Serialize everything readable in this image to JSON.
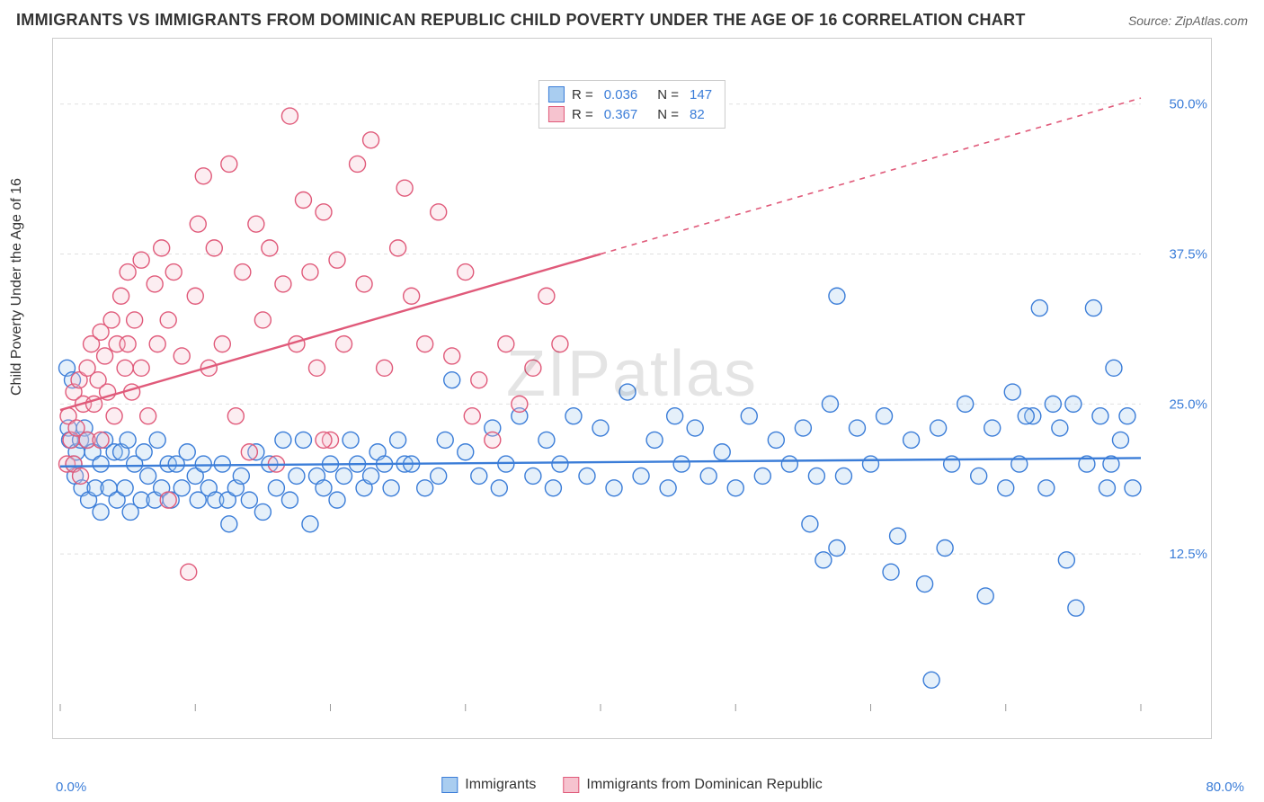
{
  "title": "IMMIGRANTS VS IMMIGRANTS FROM DOMINICAN REPUBLIC CHILD POVERTY UNDER THE AGE OF 16 CORRELATION CHART",
  "source": "Source: ZipAtlas.com",
  "watermark": "ZIPatlas",
  "y_axis_label": "Child Poverty Under the Age of 16",
  "chart": {
    "type": "scatter",
    "background_color": "#ffffff",
    "grid_color": "#e0e0e0",
    "frame_color": "#cccccc",
    "xlim": [
      0,
      80
    ],
    "ylim": [
      0,
      55
    ],
    "x_ticks": [
      0,
      10,
      20,
      30,
      40,
      50,
      60,
      70,
      80
    ],
    "x_origin_label": "0.0%",
    "x_max_label": "80.0%",
    "y_ticks": [
      {
        "v": 12.5,
        "label": "12.5%"
      },
      {
        "v": 25.0,
        "label": "25.0%"
      },
      {
        "v": 37.5,
        "label": "37.5%"
      },
      {
        "v": 50.0,
        "label": "50.0%"
      }
    ],
    "marker_radius": 9,
    "marker_stroke_width": 1.4,
    "marker_fill_opacity": 0.3,
    "trend_line_width": 2.4,
    "trend_dash": "6,6",
    "axis_label_color": "#3b7dd8",
    "axis_label_fontsize": 15,
    "title_fontsize": 18,
    "title_color": "#333333"
  },
  "legend_top": [
    {
      "swatch_fill": "#a9cdf0",
      "swatch_stroke": "#3b7dd8",
      "r_label": "R =",
      "r_value": "0.036",
      "n_label": "N =",
      "n_value": "147"
    },
    {
      "swatch_fill": "#f6c3cf",
      "swatch_stroke": "#e05a7a",
      "r_label": "R =",
      "r_value": "0.367",
      "n_label": "N =",
      "n_value": "82"
    }
  ],
  "legend_bottom": [
    {
      "swatch_fill": "#a9cdf0",
      "swatch_stroke": "#3b7dd8",
      "label": "Immigrants"
    },
    {
      "swatch_fill": "#f6c3cf",
      "swatch_stroke": "#e05a7a",
      "label": "Immigrants from Dominican Republic"
    }
  ],
  "series": [
    {
      "name": "Immigrants",
      "color_stroke": "#3b7dd8",
      "color_fill": "#a9cdf0",
      "trend": {
        "x1": 0,
        "y1": 19.8,
        "x2": 80,
        "y2": 20.5,
        "solid_until_x": 80
      },
      "points": [
        [
          0.5,
          28
        ],
        [
          0.6,
          23
        ],
        [
          0.7,
          22
        ],
        [
          0.9,
          27
        ],
        [
          1.0,
          20
        ],
        [
          1.1,
          19
        ],
        [
          1.2,
          21
        ],
        [
          1.5,
          22
        ],
        [
          1.6,
          18
        ],
        [
          1.8,
          23
        ],
        [
          2.0,
          22
        ],
        [
          2.1,
          17
        ],
        [
          2.4,
          21
        ],
        [
          2.6,
          18
        ],
        [
          3.0,
          20
        ],
        [
          3.0,
          16
        ],
        [
          3.3,
          22
        ],
        [
          3.6,
          18
        ],
        [
          4.0,
          21
        ],
        [
          4.2,
          17
        ],
        [
          4.5,
          21
        ],
        [
          4.8,
          18
        ],
        [
          5.0,
          22
        ],
        [
          5.2,
          16
        ],
        [
          5.5,
          20
        ],
        [
          6.0,
          17
        ],
        [
          6.2,
          21
        ],
        [
          6.5,
          19
        ],
        [
          7.0,
          17
        ],
        [
          7.2,
          22
        ],
        [
          7.5,
          18
        ],
        [
          8.0,
          20
        ],
        [
          8.2,
          17
        ],
        [
          8.6,
          20
        ],
        [
          9.0,
          18
        ],
        [
          9.4,
          21
        ],
        [
          10.0,
          19
        ],
        [
          10.2,
          17
        ],
        [
          10.6,
          20
        ],
        [
          11.0,
          18
        ],
        [
          11.5,
          17
        ],
        [
          12.0,
          20
        ],
        [
          12.4,
          17
        ],
        [
          13.0,
          18
        ],
        [
          13.4,
          19
        ],
        [
          14.0,
          17
        ],
        [
          14.5,
          21
        ],
        [
          15.0,
          16
        ],
        [
          15.5,
          20
        ],
        [
          16.0,
          18
        ],
        [
          16.5,
          22
        ],
        [
          17.0,
          17
        ],
        [
          17.5,
          19
        ],
        [
          18.0,
          22
        ],
        [
          18.5,
          15
        ],
        [
          19.0,
          19
        ],
        [
          19.5,
          18
        ],
        [
          20.0,
          20
        ],
        [
          20.5,
          17
        ],
        [
          21.0,
          19
        ],
        [
          21.5,
          22
        ],
        [
          22.0,
          20
        ],
        [
          22.5,
          18
        ],
        [
          23.0,
          19
        ],
        [
          23.5,
          21
        ],
        [
          24.0,
          20
        ],
        [
          24.5,
          18
        ],
        [
          25.0,
          22
        ],
        [
          25.5,
          20
        ],
        [
          26.0,
          20
        ],
        [
          27.0,
          18
        ],
        [
          28.0,
          19
        ],
        [
          28.5,
          22
        ],
        [
          29.0,
          27
        ],
        [
          30.0,
          21
        ],
        [
          31.0,
          19
        ],
        [
          32.0,
          23
        ],
        [
          32.5,
          18
        ],
        [
          33.0,
          20
        ],
        [
          34.0,
          24
        ],
        [
          35.0,
          19
        ],
        [
          36.0,
          22
        ],
        [
          36.5,
          18
        ],
        [
          37.0,
          20
        ],
        [
          38.0,
          24
        ],
        [
          39.0,
          19
        ],
        [
          40.0,
          23
        ],
        [
          41.0,
          18
        ],
        [
          42.0,
          26
        ],
        [
          43.0,
          19
        ],
        [
          44.0,
          22
        ],
        [
          45.0,
          18
        ],
        [
          45.5,
          24
        ],
        [
          46.0,
          20
        ],
        [
          47.0,
          23
        ],
        [
          48.0,
          19
        ],
        [
          49.0,
          21
        ],
        [
          50.0,
          18
        ],
        [
          51.0,
          24
        ],
        [
          52.0,
          19
        ],
        [
          53.0,
          22
        ],
        [
          54.0,
          20
        ],
        [
          55.0,
          23
        ],
        [
          55.5,
          15
        ],
        [
          56.0,
          19
        ],
        [
          57.0,
          25
        ],
        [
          57.5,
          34
        ],
        [
          58.0,
          19
        ],
        [
          59.0,
          23
        ],
        [
          60.0,
          20
        ],
        [
          61.0,
          24
        ],
        [
          62.0,
          14
        ],
        [
          63.0,
          22
        ],
        [
          64.0,
          10
        ],
        [
          65.0,
          23
        ],
        [
          65.5,
          13
        ],
        [
          66.0,
          20
        ],
        [
          67.0,
          25
        ],
        [
          68.0,
          19
        ],
        [
          69.0,
          23
        ],
        [
          70.0,
          18
        ],
        [
          70.5,
          26
        ],
        [
          71.0,
          20
        ],
        [
          72.0,
          24
        ],
        [
          72.5,
          33
        ],
        [
          73.0,
          18
        ],
        [
          74.0,
          23
        ],
        [
          74.5,
          12
        ],
        [
          75.0,
          25
        ],
        [
          75.2,
          8
        ],
        [
          76.0,
          20
        ],
        [
          77.0,
          24
        ],
        [
          77.5,
          18
        ],
        [
          78.0,
          28
        ],
        [
          78.5,
          22
        ],
        [
          79.0,
          24
        ],
        [
          79.4,
          18
        ],
        [
          64.5,
          2
        ],
        [
          12.5,
          15
        ],
        [
          56.5,
          12
        ],
        [
          57.5,
          13
        ],
        [
          61.5,
          11
        ],
        [
          68.5,
          9
        ],
        [
          71.5,
          24
        ],
        [
          73.5,
          25
        ],
        [
          76.5,
          33
        ],
        [
          77.8,
          20
        ]
      ]
    },
    {
      "name": "Immigrants from Dominican Republic",
      "color_stroke": "#e05a7a",
      "color_fill": "#f6c3cf",
      "trend": {
        "x1": 0,
        "y1": 24.5,
        "x2": 80,
        "y2": 50.5,
        "solid_until_x": 40
      },
      "points": [
        [
          0.5,
          20
        ],
        [
          0.6,
          24
        ],
        [
          0.8,
          22
        ],
        [
          1.0,
          26
        ],
        [
          1.0,
          20
        ],
        [
          1.2,
          23
        ],
        [
          1.4,
          27
        ],
        [
          1.5,
          19
        ],
        [
          1.7,
          25
        ],
        [
          2.0,
          28
        ],
        [
          2.0,
          22
        ],
        [
          2.3,
          30
        ],
        [
          2.5,
          25
        ],
        [
          2.8,
          27
        ],
        [
          3.0,
          31
        ],
        [
          3.0,
          22
        ],
        [
          3.3,
          29
        ],
        [
          3.5,
          26
        ],
        [
          3.8,
          32
        ],
        [
          4.0,
          24
        ],
        [
          4.2,
          30
        ],
        [
          4.5,
          34
        ],
        [
          4.8,
          28
        ],
        [
          5.0,
          36
        ],
        [
          5.0,
          30
        ],
        [
          5.3,
          26
        ],
        [
          5.5,
          32
        ],
        [
          6.0,
          28
        ],
        [
          6.0,
          37
        ],
        [
          6.5,
          24
        ],
        [
          7.0,
          35
        ],
        [
          7.2,
          30
        ],
        [
          7.5,
          38
        ],
        [
          8.0,
          32
        ],
        [
          8.0,
          17
        ],
        [
          8.4,
          36
        ],
        [
          9.0,
          29
        ],
        [
          9.5,
          11
        ],
        [
          10.0,
          34
        ],
        [
          10.2,
          40
        ],
        [
          10.6,
          44
        ],
        [
          11.0,
          28
        ],
        [
          11.4,
          38
        ],
        [
          12.0,
          30
        ],
        [
          12.5,
          45
        ],
        [
          13.0,
          24
        ],
        [
          13.5,
          36
        ],
        [
          14.0,
          21
        ],
        [
          14.5,
          40
        ],
        [
          15.0,
          32
        ],
        [
          15.5,
          38
        ],
        [
          16.0,
          20
        ],
        [
          16.5,
          35
        ],
        [
          17.0,
          49
        ],
        [
          17.5,
          30
        ],
        [
          18.0,
          42
        ],
        [
          18.5,
          36
        ],
        [
          19.0,
          28
        ],
        [
          19.5,
          41
        ],
        [
          20.0,
          22
        ],
        [
          20.5,
          37
        ],
        [
          21.0,
          30
        ],
        [
          22.0,
          45
        ],
        [
          22.5,
          35
        ],
        [
          23.0,
          47
        ],
        [
          24.0,
          28
        ],
        [
          25.0,
          38
        ],
        [
          25.5,
          43
        ],
        [
          26.0,
          34
        ],
        [
          27.0,
          30
        ],
        [
          28.0,
          41
        ],
        [
          29.0,
          29
        ],
        [
          30.0,
          36
        ],
        [
          31.0,
          27
        ],
        [
          32.0,
          22
        ],
        [
          33.0,
          30
        ],
        [
          34.0,
          25
        ],
        [
          35.0,
          28
        ],
        [
          36.0,
          34
        ],
        [
          37.0,
          30
        ],
        [
          19.5,
          22
        ],
        [
          30.5,
          24
        ]
      ]
    }
  ]
}
